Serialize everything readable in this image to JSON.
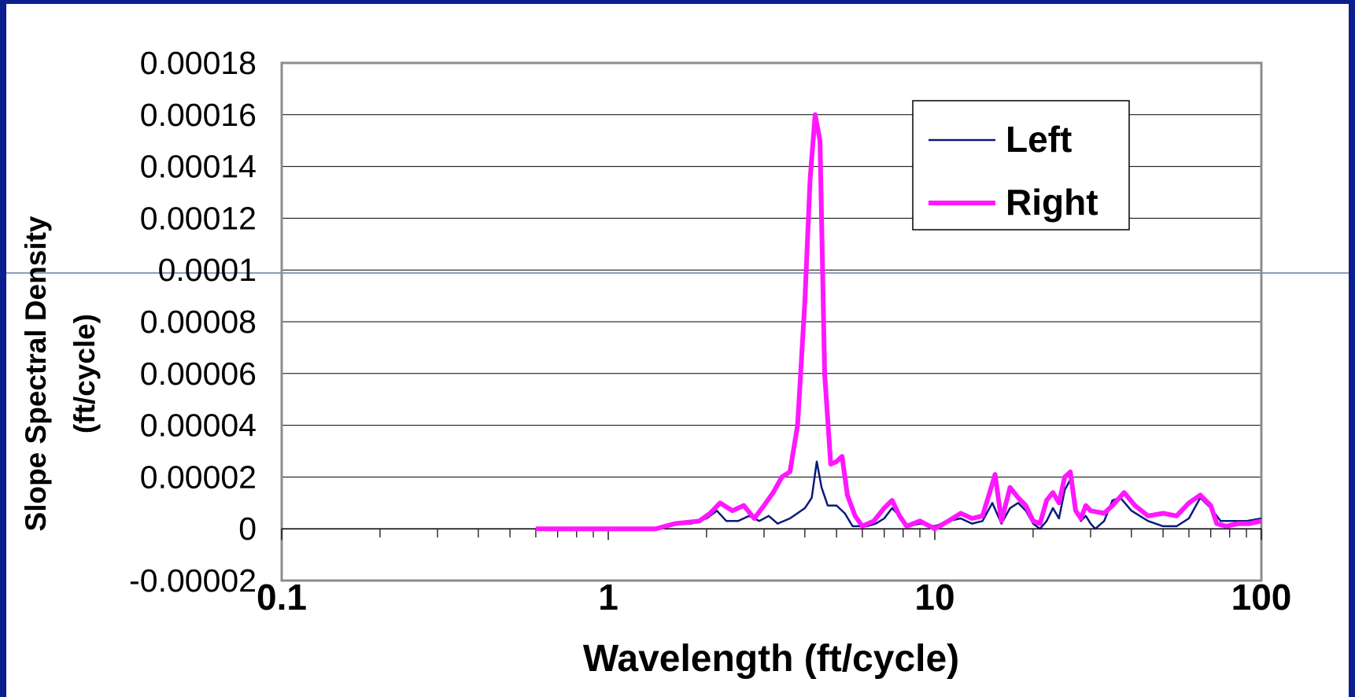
{
  "chart_data": {
    "type": "line",
    "xscale": "log",
    "xlim": [
      0.1,
      100
    ],
    "ylim": [
      -2e-05,
      0.00018
    ],
    "grid": "horizontal",
    "legend_position": "top-right",
    "xlabel": "Wavelength (ft/cycle)",
    "ylabel_lines": [
      "Slope Spectral Density",
      "(ft/cycle)"
    ],
    "yticks": [
      "-0.00002",
      "0",
      "0.00002",
      "0.00004",
      "0.00006",
      "0.00008",
      "0.0001",
      "0.00012",
      "0.00014",
      "0.00016",
      "0.00018"
    ],
    "ytick_values": [
      -2e-05,
      0,
      2e-05,
      4e-05,
      6e-05,
      8e-05,
      0.0001,
      0.00012,
      0.00014,
      0.00016,
      0.00018
    ],
    "xticks": [
      "0.1",
      "1",
      "10",
      "100"
    ],
    "xtick_values": [
      0.1,
      1,
      10,
      100
    ],
    "series": [
      {
        "name": "Left",
        "color": "#0a1a7a",
        "points": [
          [
            0.6,
            0
          ],
          [
            1.0,
            0
          ],
          [
            1.4,
            0
          ],
          [
            1.6,
            2e-06
          ],
          [
            1.8,
            2e-06
          ],
          [
            2.0,
            4e-06
          ],
          [
            2.15,
            7e-06
          ],
          [
            2.3,
            3e-06
          ],
          [
            2.5,
            3e-06
          ],
          [
            2.7,
            5e-06
          ],
          [
            2.9,
            3e-06
          ],
          [
            3.1,
            5e-06
          ],
          [
            3.3,
            2e-06
          ],
          [
            3.6,
            4e-06
          ],
          [
            4.0,
            8e-06
          ],
          [
            4.2,
            1.2e-05
          ],
          [
            4.35,
            2.6e-05
          ],
          [
            4.5,
            1.6e-05
          ],
          [
            4.7,
            9e-06
          ],
          [
            5.0,
            9e-06
          ],
          [
            5.3,
            6e-06
          ],
          [
            5.6,
            1e-06
          ],
          [
            6.2,
            1e-06
          ],
          [
            6.6,
            2e-06
          ],
          [
            7.0,
            4e-06
          ],
          [
            7.4,
            8e-06
          ],
          [
            7.8,
            5e-06
          ],
          [
            8.3,
            1e-06
          ],
          [
            9.0,
            2e-06
          ],
          [
            10,
            1e-06
          ],
          [
            11,
            3e-06
          ],
          [
            12,
            4e-06
          ],
          [
            13,
            2e-06
          ],
          [
            14,
            3e-06
          ],
          [
            15,
            1e-05
          ],
          [
            16,
            2e-06
          ],
          [
            17,
            8e-06
          ],
          [
            18,
            1e-05
          ],
          [
            19,
            7e-06
          ],
          [
            20,
            2e-06
          ],
          [
            21,
            0
          ],
          [
            22,
            3e-06
          ],
          [
            23,
            8e-06
          ],
          [
            24,
            4e-06
          ],
          [
            25,
            1.5e-05
          ],
          [
            26,
            1.9e-05
          ],
          [
            27,
            8e-06
          ],
          [
            28,
            3e-06
          ],
          [
            29,
            5e-06
          ],
          [
            30,
            2e-06
          ],
          [
            31,
            0
          ],
          [
            33,
            3e-06
          ],
          [
            35,
            1.1e-05
          ],
          [
            37,
            1.2e-05
          ],
          [
            40,
            7e-06
          ],
          [
            45,
            3e-06
          ],
          [
            50,
            1e-06
          ],
          [
            55,
            1e-06
          ],
          [
            60,
            4e-06
          ],
          [
            65,
            1.2e-05
          ],
          [
            70,
            8e-06
          ],
          [
            75,
            3e-06
          ],
          [
            80,
            3e-06
          ],
          [
            90,
            3e-06
          ],
          [
            100,
            4e-06
          ]
        ]
      },
      {
        "name": "Right",
        "color": "#ff17ff",
        "points": [
          [
            0.6,
            0
          ],
          [
            1.0,
            0
          ],
          [
            1.4,
            0
          ],
          [
            1.6,
            2e-06
          ],
          [
            1.9,
            3e-06
          ],
          [
            2.05,
            6e-06
          ],
          [
            2.2,
            1e-05
          ],
          [
            2.4,
            7e-06
          ],
          [
            2.6,
            9e-06
          ],
          [
            2.8,
            4e-06
          ],
          [
            3.0,
            9e-06
          ],
          [
            3.2,
            1.4e-05
          ],
          [
            3.4,
            2e-05
          ],
          [
            3.6,
            2.2e-05
          ],
          [
            3.8,
            4e-05
          ],
          [
            4.0,
            8.8e-05
          ],
          [
            4.15,
            0.000135
          ],
          [
            4.3,
            0.00016
          ],
          [
            4.45,
            0.00015
          ],
          [
            4.6,
            6e-05
          ],
          [
            4.8,
            2.5e-05
          ],
          [
            5.0,
            2.6e-05
          ],
          [
            5.2,
            2.8e-05
          ],
          [
            5.4,
            1.3e-05
          ],
          [
            5.7,
            5e-06
          ],
          [
            6.0,
            1e-06
          ],
          [
            6.5,
            3e-06
          ],
          [
            7.0,
            8e-06
          ],
          [
            7.4,
            1.1e-05
          ],
          [
            7.8,
            5e-06
          ],
          [
            8.2,
            1e-06
          ],
          [
            9.0,
            3e-06
          ],
          [
            10,
            0
          ],
          [
            11,
            3e-06
          ],
          [
            12,
            6e-06
          ],
          [
            13,
            4e-06
          ],
          [
            14,
            5e-06
          ],
          [
            14.8,
            1.5e-05
          ],
          [
            15.3,
            2.1e-05
          ],
          [
            16,
            3e-06
          ],
          [
            17,
            1.6e-05
          ],
          [
            18,
            1.2e-05
          ],
          [
            19,
            9e-06
          ],
          [
            20,
            3e-06
          ],
          [
            21,
            2e-06
          ],
          [
            22,
            1.1e-05
          ],
          [
            23,
            1.4e-05
          ],
          [
            24,
            1e-05
          ],
          [
            25,
            2e-05
          ],
          [
            26,
            2.2e-05
          ],
          [
            27,
            7e-06
          ],
          [
            28,
            4e-06
          ],
          [
            29,
            9e-06
          ],
          [
            30,
            7e-06
          ],
          [
            33,
            6e-06
          ],
          [
            35,
            9e-06
          ],
          [
            38,
            1.4e-05
          ],
          [
            41,
            9e-06
          ],
          [
            45,
            5e-06
          ],
          [
            50,
            6e-06
          ],
          [
            55,
            5e-06
          ],
          [
            60,
            1e-05
          ],
          [
            65,
            1.3e-05
          ],
          [
            70,
            9e-06
          ],
          [
            73,
            2e-06
          ],
          [
            78,
            1e-06
          ],
          [
            85,
            2e-06
          ],
          [
            92,
            2e-06
          ],
          [
            100,
            3e-06
          ]
        ]
      }
    ]
  }
}
